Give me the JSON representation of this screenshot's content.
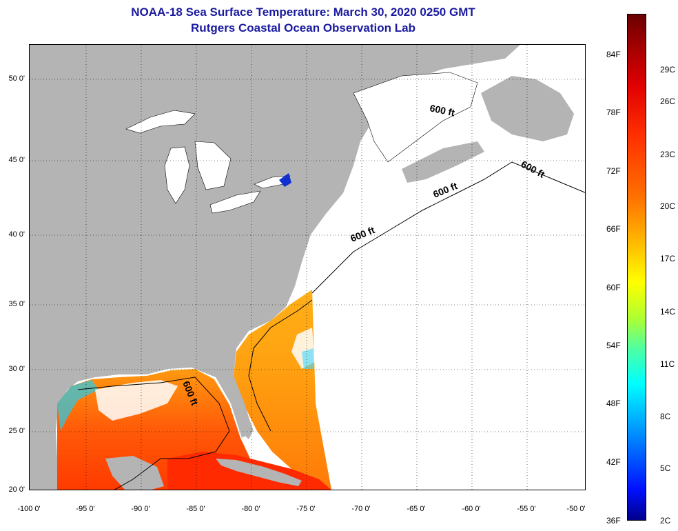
{
  "title": {
    "line1": "NOAA-18 Sea Surface Temperature:  March 30, 2020 0250 GMT",
    "line2": "Rutgers Coastal Ocean Observation Lab"
  },
  "map": {
    "latitude_labels": [
      "50 0'",
      "45 0'",
      "40 0'",
      "35 0'",
      "30 0'",
      "25 0'",
      "20 0'"
    ],
    "longitude_labels": [
      "-100 0'",
      "-95 0'",
      "-90 0'",
      "-85 0'",
      "-80 0'",
      "-75 0'",
      "-70 0'",
      "-65 0'",
      "-60 0'",
      "-55 0'",
      "-50 0'"
    ],
    "contour_labels": [
      "600 ft",
      "600 ft",
      "600 ft",
      "600 ft",
      "600 ft"
    ],
    "land_color": "#b4b4b4",
    "no_data_color": "#ffffff"
  },
  "colorbar": {
    "fahrenheit_labels": [
      "84F",
      "78F",
      "72F",
      "66F",
      "60F",
      "54F",
      "48F",
      "42F",
      "36F"
    ],
    "celsius_labels": [
      "29C",
      "26C",
      "23C",
      "20C",
      "17C",
      "14C",
      "11C",
      "8C",
      "5C",
      "2C"
    ]
  }
}
